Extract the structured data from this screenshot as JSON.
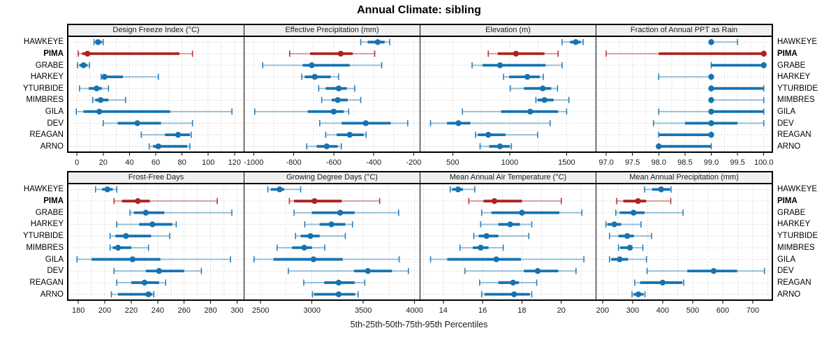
{
  "title": "Annual Climate: sibling",
  "caption": "5th-25th-50th-75th-95th Percentiles",
  "highlight_station": "PIMA",
  "colors": {
    "series": "#1673b1",
    "highlight": "#b22222",
    "grid": "#c3c3c3",
    "header_bg": "#f0f0f0",
    "border": "#000000"
  },
  "chart_data": {
    "type": "interval-dotplot-trellis",
    "percentile_labels": [
      "5th",
      "25th",
      "50th",
      "75th",
      "95th"
    ],
    "stations": [
      "HAWKEYE",
      "PIMA",
      "GRABE",
      "HARKEY",
      "YTURBIDE",
      "MIMBRES",
      "GILA",
      "DEV",
      "REAGAN",
      "ARNO"
    ],
    "panels": [
      {
        "slug": "design-freeze-index",
        "title": "Design Freeze Index (°C)",
        "row": 0,
        "col": 0,
        "xmin": -7,
        "xmax": 127,
        "minor_step": 10,
        "tick_values": [
          0,
          20,
          40,
          60,
          80,
          100,
          120
        ],
        "tick_labels": [
          "0",
          "20",
          "40",
          "60",
          "80",
          "100",
          "120"
        ],
        "values": [
          [
            13,
            14,
            16,
            19,
            20
          ],
          [
            1,
            4,
            8,
            78,
            88
          ],
          [
            0.5,
            2,
            5,
            8,
            9.5
          ],
          [
            18.5,
            19.5,
            21,
            35,
            62
          ],
          [
            2,
            9,
            15,
            19,
            24
          ],
          [
            12,
            14,
            18,
            24,
            37
          ],
          [
            -0.5,
            5,
            17,
            71,
            118
          ],
          [
            20,
            31,
            46,
            64,
            88
          ],
          [
            49,
            67,
            77,
            86,
            87
          ],
          [
            55,
            58,
            62,
            84,
            86
          ]
        ]
      },
      {
        "slug": "effective-precipitation",
        "title": "Effective Precipitation (mm)",
        "row": 0,
        "col": 1,
        "xmin": -1050,
        "xmax": -170,
        "minor_step": 100,
        "tick_values": [
          -1000,
          -800,
          -600,
          -400,
          -200
        ],
        "tick_labels": [
          "-1000",
          "-800",
          "-600",
          "-400",
          "-200"
        ],
        "values": [
          [
            -465,
            -430,
            -380,
            -345,
            -320
          ],
          [
            -820,
            -718,
            -565,
            -505,
            -395
          ],
          [
            -955,
            -755,
            -710,
            -520,
            -360
          ],
          [
            -760,
            -745,
            -695,
            -615,
            -575
          ],
          [
            -675,
            -640,
            -575,
            -535,
            -495
          ],
          [
            -660,
            -610,
            -580,
            -530,
            -465
          ],
          [
            -995,
            -730,
            -600,
            -550,
            -525
          ],
          [
            -670,
            -560,
            -440,
            -315,
            -230
          ],
          [
            -640,
            -585,
            -520,
            -450,
            -438
          ],
          [
            -735,
            -685,
            -635,
            -580,
            -562
          ]
        ]
      },
      {
        "slug": "elevation",
        "title": "Elevation (m)",
        "row": 0,
        "col": 2,
        "xmin": 210,
        "xmax": 1755,
        "minor_step": 250,
        "tick_values": [
          500,
          1000,
          1500
        ],
        "tick_labels": [
          "500",
          "1000",
          "1500"
        ],
        "values": [
          [
            1460,
            1530,
            1580,
            1625,
            1645
          ],
          [
            812,
            895,
            1055,
            1305,
            1425
          ],
          [
            670,
            762,
            915,
            1315,
            1460
          ],
          [
            945,
            995,
            1155,
            1265,
            1295
          ],
          [
            1005,
            1125,
            1290,
            1365,
            1420
          ],
          [
            1230,
            1245,
            1305,
            1385,
            1520
          ],
          [
            585,
            925,
            1180,
            1425,
            1500
          ],
          [
            305,
            450,
            550,
            655,
            1355
          ],
          [
            700,
            720,
            812,
            963,
            1245
          ],
          [
            740,
            820,
            915,
            1000,
            1015
          ]
        ]
      },
      {
        "slug": "fraction-ppt-rain",
        "title": "Fraction of Annual PPT as Rain",
        "row": 0,
        "col": 3,
        "xmin": 96.8,
        "xmax": 100.15,
        "minor_step": 0.25,
        "tick_values": [
          97.0,
          97.5,
          98.0,
          98.5,
          99.0,
          99.5,
          100.0
        ],
        "tick_labels": [
          "97.0",
          "97.5",
          "98.0",
          "98.5",
          "99.0",
          "99.5",
          "100.0"
        ],
        "values": [
          [
            99.0,
            99.0,
            99.0,
            99.0,
            99.5
          ],
          [
            97.0,
            98.0,
            100.0,
            100.0,
            100.0
          ],
          [
            99.0,
            99.0,
            100.0,
            100.0,
            100.0
          ],
          [
            98.0,
            99.0,
            99.0,
            99.0,
            99.0
          ],
          [
            99.0,
            99.0,
            99.0,
            100.0,
            100.0
          ],
          [
            99.0,
            99.0,
            99.0,
            99.0,
            100.0
          ],
          [
            98.0,
            99.0,
            99.0,
            100.0,
            100.0
          ],
          [
            97.9,
            98.5,
            99.0,
            99.5,
            100.0
          ],
          [
            98.0,
            98.0,
            99.0,
            99.0,
            99.0
          ],
          [
            98.0,
            98.0,
            98.0,
            99.0,
            99.0
          ]
        ]
      },
      {
        "slug": "frost-free-days",
        "title": "Frost-Free Days",
        "row": 1,
        "col": 0,
        "xmin": 172,
        "xmax": 305,
        "minor_step": 10,
        "tick_values": [
          180,
          200,
          220,
          240,
          260,
          280,
          300
        ],
        "tick_labels": [
          "180",
          "200",
          "220",
          "240",
          "260",
          "280",
          "300"
        ],
        "values": [
          [
            193,
            198,
            202,
            206,
            209
          ],
          [
            207,
            213,
            225,
            234,
            285
          ],
          [
            219,
            222,
            231,
            245,
            296
          ],
          [
            209,
            226,
            236,
            251,
            254
          ],
          [
            204,
            208,
            216,
            235,
            249
          ],
          [
            204,
            206,
            210,
            220,
            233
          ],
          [
            179,
            190,
            221,
            242,
            295
          ],
          [
            207,
            231,
            241,
            260,
            273
          ],
          [
            209,
            220,
            230,
            241,
            246
          ],
          [
            205,
            210,
            233,
            236,
            237
          ]
        ]
      },
      {
        "slug": "growing-degree-days",
        "title": "Growing Degree Days (°C)",
        "row": 1,
        "col": 1,
        "xmin": 2335,
        "xmax": 4050,
        "minor_step": 250,
        "tick_values": [
          2500,
          3000,
          3500,
          4000
        ],
        "tick_labels": [
          "2500",
          "3000",
          "3500",
          "4000"
        ],
        "values": [
          [
            2570,
            2600,
            2685,
            2730,
            2890
          ],
          [
            2780,
            2825,
            3025,
            3290,
            3660
          ],
          [
            2825,
            3000,
            3275,
            3415,
            3845
          ],
          [
            2930,
            3075,
            3190,
            3325,
            3395
          ],
          [
            2840,
            2890,
            2985,
            3075,
            3325
          ],
          [
            2660,
            2805,
            2925,
            3000,
            3125
          ],
          [
            2435,
            2625,
            3015,
            3300,
            3850
          ],
          [
            2770,
            3410,
            3545,
            3780,
            3940
          ],
          [
            2920,
            3120,
            3260,
            3415,
            3515
          ],
          [
            3005,
            3020,
            3260,
            3420,
            3450
          ]
        ]
      },
      {
        "slug": "mean-annual-air-temperature",
        "title": "Mean Annual Air Temperature (°C)",
        "row": 1,
        "col": 2,
        "xmin": 12.8,
        "xmax": 21.75,
        "minor_step": 1,
        "tick_values": [
          14,
          16,
          18,
          20
        ],
        "tick_labels": [
          "14",
          "16",
          "18",
          "20"
        ],
        "values": [
          [
            14.35,
            14.45,
            14.75,
            15.0,
            15.6
          ],
          [
            15.3,
            16.05,
            16.6,
            18.0,
            20.0
          ],
          [
            15.95,
            16.45,
            18.0,
            19.9,
            21.05
          ],
          [
            15.9,
            16.8,
            17.4,
            17.9,
            18.5
          ],
          [
            15.55,
            15.8,
            16.2,
            16.8,
            18.35
          ],
          [
            14.85,
            15.5,
            15.9,
            16.3,
            17.05
          ],
          [
            13.35,
            14.2,
            16.7,
            17.95,
            21.15
          ],
          [
            15.1,
            18.1,
            18.8,
            19.85,
            20.75
          ],
          [
            15.85,
            16.8,
            17.55,
            17.85,
            18.75
          ],
          [
            15.95,
            16.1,
            17.6,
            18.4,
            18.5
          ]
        ]
      },
      {
        "slug": "mean-annual-precipitation",
        "title": "Mean Annual Precipitation (mm)",
        "row": 1,
        "col": 3,
        "xmin": 177,
        "xmax": 763,
        "minor_step": 50,
        "tick_values": [
          200,
          300,
          400,
          500,
          600,
          700
        ],
        "tick_labels": [
          "200",
          "300",
          "400",
          "500",
          "600",
          "700"
        ],
        "values": [
          [
            340,
            365,
            395,
            425,
            428
          ],
          [
            247,
            269,
            318,
            345,
            427
          ],
          [
            244,
            257,
            303,
            340,
            468
          ],
          [
            211,
            216,
            239,
            262,
            328
          ],
          [
            223,
            253,
            282,
            304,
            363
          ],
          [
            253,
            259,
            291,
            300,
            334
          ],
          [
            223,
            229,
            257,
            285,
            346
          ],
          [
            348,
            482,
            570,
            648,
            739
          ],
          [
            307,
            325,
            400,
            465,
            470
          ],
          [
            298,
            303,
            319,
            336,
            341
          ]
        ]
      }
    ]
  }
}
